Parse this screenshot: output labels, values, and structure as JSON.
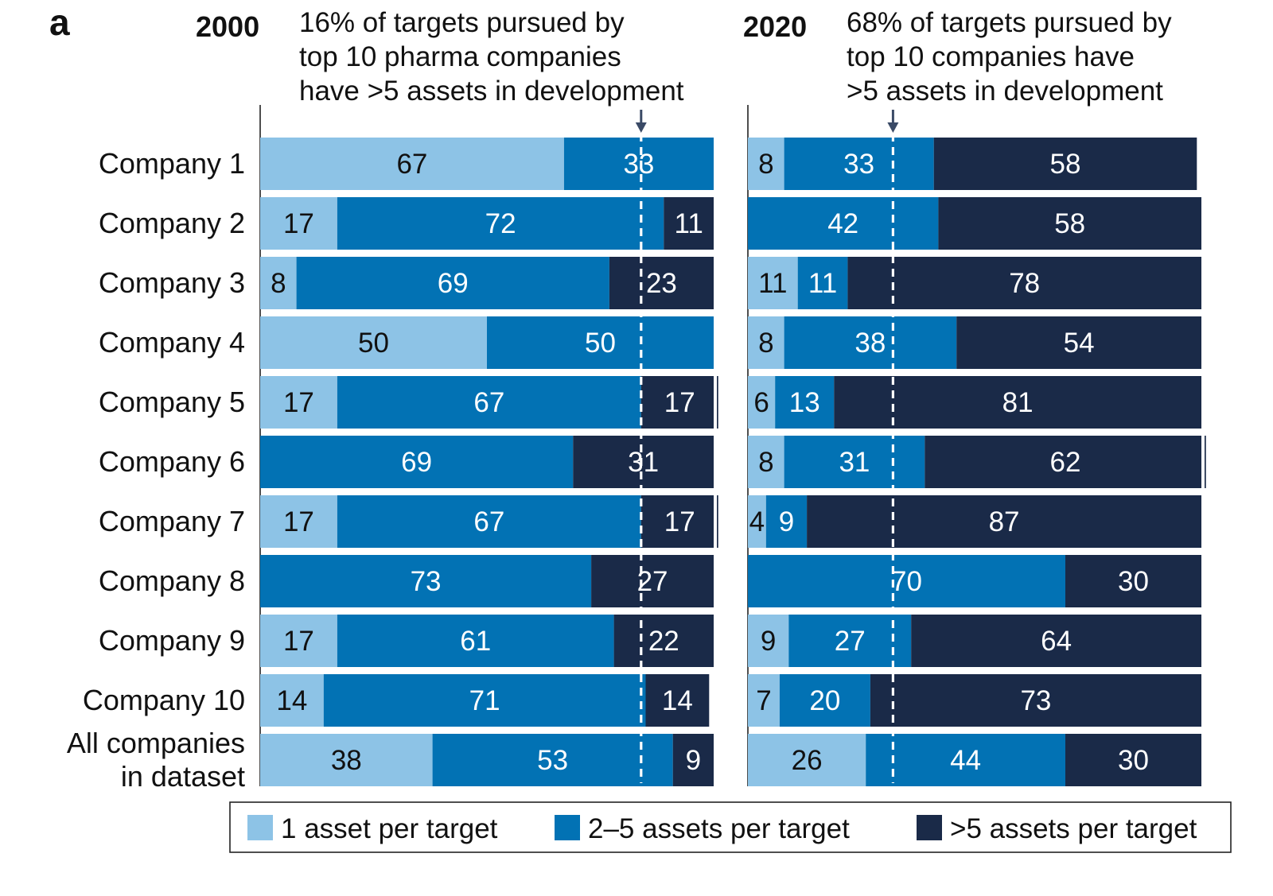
{
  "panel_label": "a",
  "chart_data": {
    "type": "bar",
    "orientation": "horizontal",
    "stacked": true,
    "categories": [
      "Company 1",
      "Company 2",
      "Company 3",
      "Company 4",
      "Company 5",
      "Company 6",
      "Company 7",
      "Company 8",
      "Company 9",
      "Company 10",
      "All companies in dataset"
    ],
    "category_lines": [
      [
        "Company 1"
      ],
      [
        "Company 2"
      ],
      [
        "Company 3"
      ],
      [
        "Company 4"
      ],
      [
        "Company 5"
      ],
      [
        "Company 6"
      ],
      [
        "Company 7"
      ],
      [
        "Company 8"
      ],
      [
        "Company 9"
      ],
      [
        "Company 10"
      ],
      [
        "All companies",
        "in dataset"
      ]
    ],
    "xlim": [
      0,
      100
    ],
    "legend": {
      "position": "bottom",
      "entries": [
        {
          "name": "1 asset per target",
          "color": "#8dc3e6"
        },
        {
          "name": "2–5 assets per target",
          "color": "#0272b4"
        },
        {
          "name": ">5 assets per target",
          "color": "#1a2a48"
        }
      ]
    },
    "panels": [
      {
        "year": "2000",
        "note_lines": [
          "16% of targets pursued by",
          "top 10 pharma companies",
          "have >5 assets in development"
        ],
        "reference_line": 84,
        "series": [
          {
            "name": "1 asset per target",
            "values": [
              67,
              17,
              8,
              50,
              17,
              0,
              17,
              0,
              17,
              14,
              38
            ],
            "labels": [
              "67",
              "17",
              "8",
              "50",
              "17",
              "",
              "17",
              "",
              "17",
              "14",
              "38"
            ]
          },
          {
            "name": "2–5 assets per target",
            "values": [
              33,
              72,
              69,
              50,
              67,
              69,
              67,
              73,
              61,
              71,
              53
            ],
            "labels": [
              "33",
              "72",
              "69",
              "50",
              "67",
              "69",
              "67",
              "73",
              "61",
              "71",
              "53"
            ]
          },
          {
            "name": ">5 assets per target",
            "values": [
              0,
              11,
              23,
              0,
              17,
              31,
              17,
              27,
              22,
              14,
              9
            ],
            "labels": [
              "",
              "11",
              "23",
              "",
              "17",
              "31",
              "17",
              "27",
              "22",
              "14",
              "9"
            ]
          }
        ]
      },
      {
        "year": "2020",
        "note_lines": [
          "68% of targets pursued by",
          "top 10 companies have",
          ">5 assets in development"
        ],
        "reference_line": 32,
        "series": [
          {
            "name": "1 asset per target",
            "values": [
              8,
              0,
              11,
              8,
              6,
              8,
              4,
              0,
              9,
              7,
              26
            ],
            "labels": [
              "8",
              "",
              "11",
              "8",
              "6",
              "8",
              "4",
              "",
              "9",
              "7",
              "26"
            ]
          },
          {
            "name": "2–5 assets per target",
            "values": [
              33,
              42,
              11,
              38,
              13,
              31,
              9,
              70,
              27,
              20,
              44
            ],
            "labels": [
              "33",
              "42",
              "11",
              "38",
              "13",
              "31",
              "9",
              "70",
              "27",
              "20",
              "44"
            ]
          },
          {
            "name": ">5 assets per target",
            "values": [
              58,
              58,
              78,
              54,
              81,
              62,
              87,
              30,
              64,
              73,
              30
            ],
            "labels": [
              "58",
              "58",
              "78",
              "54",
              "81",
              "62",
              "87",
              "30",
              "64",
              "73",
              "30"
            ]
          }
        ]
      }
    ]
  }
}
